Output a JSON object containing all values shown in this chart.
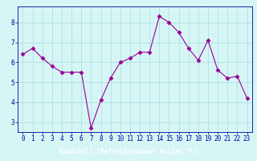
{
  "hours": [
    0,
    1,
    2,
    3,
    4,
    5,
    6,
    7,
    8,
    9,
    10,
    11,
    12,
    13,
    14,
    15,
    16,
    17,
    18,
    19,
    20,
    21,
    22,
    23
  ],
  "values": [
    6.4,
    6.7,
    6.2,
    5.8,
    5.5,
    5.5,
    5.5,
    2.7,
    4.1,
    5.2,
    6.0,
    6.2,
    6.5,
    6.5,
    8.3,
    8.0,
    7.5,
    6.7,
    6.1,
    7.1,
    5.6,
    5.2,
    5.3,
    4.2
  ],
  "line_color": "#990099",
  "marker": "D",
  "marker_size": 2.5,
  "bg_color": "#d6f5f5",
  "grid_color": "#aadddd",
  "xlabel": "Windchill (Refroidissement éolien,°C)",
  "xlabel_bg": "#6666bb",
  "ylim": [
    2.5,
    8.8
  ],
  "yticks": [
    3,
    4,
    5,
    6,
    7,
    8
  ],
  "xticks": [
    0,
    1,
    2,
    3,
    4,
    5,
    6,
    7,
    8,
    9,
    10,
    11,
    12,
    13,
    14,
    15,
    16,
    17,
    18,
    19,
    20,
    21,
    22,
    23
  ],
  "tick_label_color": "#000099",
  "spine_color": "#000099",
  "label_font_size": 5.5,
  "tick_font_size": 5.5
}
